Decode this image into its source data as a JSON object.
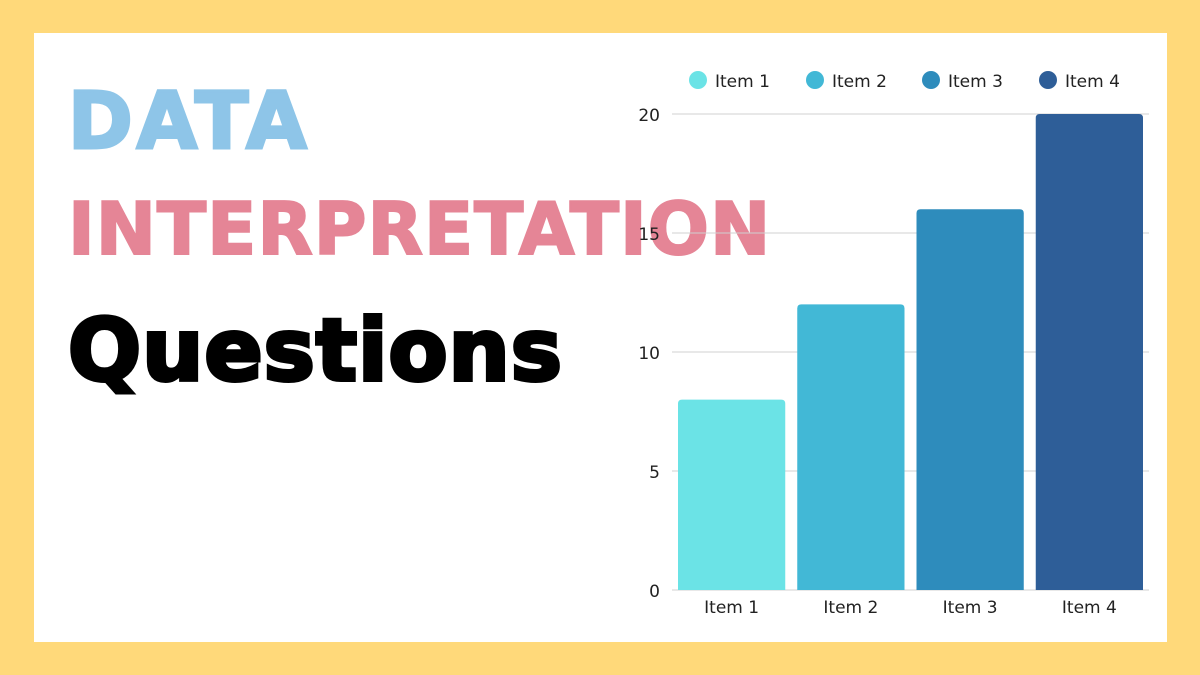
{
  "headline": {
    "line1": "DATA",
    "line2": "INTERPRETATION",
    "line3": "Questions",
    "color1": "#8EC5E8",
    "color2": "#E58596",
    "color3": "#000000"
  },
  "colors": {
    "background": "#FFD97A",
    "card": "#FFFFFF",
    "grid": "#D0D0D0",
    "axis_text": "#222222"
  },
  "chart_data": {
    "type": "bar",
    "categories": [
      "Item 1",
      "Item 2",
      "Item 3",
      "Item 4"
    ],
    "values": [
      8,
      12,
      16,
      20
    ],
    "colors": [
      "#6BE3E6",
      "#42B8D6",
      "#2E8CBC",
      "#2E5E98"
    ],
    "legend": [
      "Item 1",
      "Item 2",
      "Item 3",
      "Item 4"
    ],
    "legend_position": "top",
    "yticks": [
      0,
      5,
      10,
      15,
      20
    ],
    "ylim": [
      0,
      20
    ],
    "grid": true,
    "title": "",
    "xlabel": "",
    "ylabel": ""
  }
}
